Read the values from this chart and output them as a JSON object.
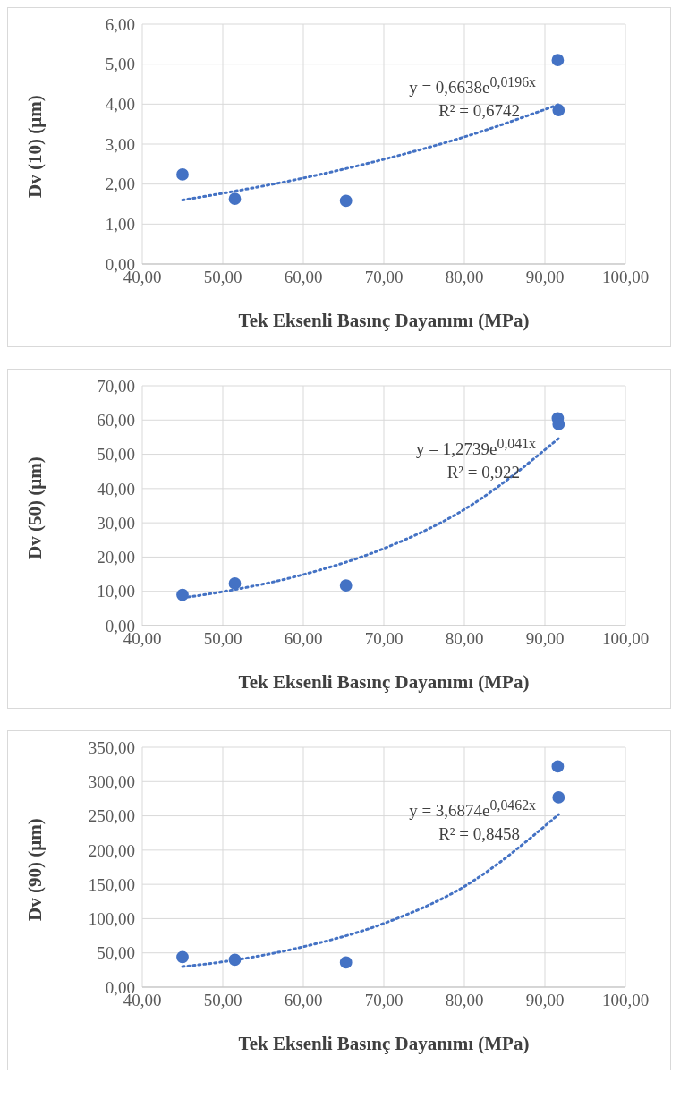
{
  "chart_data": [
    {
      "type": "scatter",
      "xlabel": "Tek Eksenli Basınç Dayanımı (MPa)",
      "ylabel": "Dv (10) (µm)",
      "grid": true,
      "legend": false,
      "xlim": [
        40,
        100
      ],
      "xticks": [
        {
          "value": 40,
          "label": "40,00"
        },
        {
          "value": 50,
          "label": "50,00"
        },
        {
          "value": 60,
          "label": "60,00"
        },
        {
          "value": 70,
          "label": "70,00"
        },
        {
          "value": 80,
          "label": "80,00"
        },
        {
          "value": 90,
          "label": "90,00"
        },
        {
          "value": 100,
          "label": "100,00"
        }
      ],
      "ylim": [
        0,
        6
      ],
      "yticks": [
        {
          "value": 0,
          "label": "0,00"
        },
        {
          "value": 1,
          "label": "1,00"
        },
        {
          "value": 2,
          "label": "2,00"
        },
        {
          "value": 3,
          "label": "3,00"
        },
        {
          "value": 4,
          "label": "4,00"
        },
        {
          "value": 5,
          "label": "5,00"
        },
        {
          "value": 6,
          "label": "6,00"
        }
      ],
      "series": [
        {
          "type": "scatter",
          "color": "#4472c4",
          "marker": "circle",
          "x": [
            45.0,
            51.5,
            65.3,
            91.6,
            91.7
          ],
          "values": [
            2.24,
            1.63,
            1.58,
            5.1,
            3.85
          ]
        },
        {
          "type": "line",
          "color": "#4472c4",
          "marker": "none",
          "line_style": "dotted",
          "x": [
            45,
            50,
            60,
            70,
            80,
            91.7
          ],
          "values": [
            1.6,
            1.77,
            2.15,
            2.62,
            3.18,
            3.99
          ]
        }
      ],
      "annotations": [
        "y = 0,6638e$^{0,0196x}$",
        "R² = 0,6742"
      ]
    },
    {
      "type": "scatter",
      "xlabel": "Tek Eksenli Basınç Dayanımı (MPa)",
      "ylabel": "Dv (50) (µm)",
      "grid": true,
      "legend": false,
      "xlim": [
        40,
        100
      ],
      "xticks": [
        {
          "value": 40,
          "label": "40,00"
        },
        {
          "value": 50,
          "label": "50,00"
        },
        {
          "value": 60,
          "label": "60,00"
        },
        {
          "value": 70,
          "label": "70,00"
        },
        {
          "value": 80,
          "label": "80,00"
        },
        {
          "value": 90,
          "label": "90,00"
        },
        {
          "value": 100,
          "label": "100,00"
        }
      ],
      "ylim": [
        0,
        70
      ],
      "yticks": [
        {
          "value": 0,
          "label": "0,00"
        },
        {
          "value": 10,
          "label": "10,00"
        },
        {
          "value": 20,
          "label": "20,00"
        },
        {
          "value": 30,
          "label": "30,00"
        },
        {
          "value": 40,
          "label": "40,00"
        },
        {
          "value": 50,
          "label": "50,00"
        },
        {
          "value": 60,
          "label": "60,00"
        },
        {
          "value": 70,
          "label": "70,00"
        }
      ],
      "series": [
        {
          "type": "scatter",
          "color": "#4472c4",
          "marker": "circle",
          "x": [
            45.0,
            51.5,
            65.3,
            91.6,
            91.7
          ],
          "values": [
            9.0,
            12.3,
            11.7,
            60.5,
            58.8
          ]
        },
        {
          "type": "line",
          "color": "#4472c4",
          "marker": "none",
          "line_style": "dotted",
          "x": [
            45,
            50,
            60,
            70,
            80,
            91.7
          ],
          "values": [
            8.1,
            9.9,
            14.9,
            22.5,
            33.9,
            54.6
          ]
        }
      ],
      "annotations": [
        "y = 1,2739e$^{0,041x}$",
        "R² = 0,922"
      ]
    },
    {
      "type": "scatter",
      "xlabel": "Tek Eksenli Basınç Dayanımı (MPa)",
      "ylabel": "Dv (90) (µm)",
      "grid": true,
      "legend": false,
      "xlim": [
        40,
        100
      ],
      "xticks": [
        {
          "value": 40,
          "label": "40,00"
        },
        {
          "value": 50,
          "label": "50,00"
        },
        {
          "value": 60,
          "label": "60,00"
        },
        {
          "value": 70,
          "label": "70,00"
        },
        {
          "value": 80,
          "label": "80,00"
        },
        {
          "value": 90,
          "label": "90,00"
        },
        {
          "value": 100,
          "label": "100,00"
        }
      ],
      "ylim": [
        0,
        350
      ],
      "yticks": [
        {
          "value": 0,
          "label": "0,00"
        },
        {
          "value": 50,
          "label": "50,00"
        },
        {
          "value": 100,
          "label": "100,00"
        },
        {
          "value": 150,
          "label": "150,00"
        },
        {
          "value": 200,
          "label": "200,00"
        },
        {
          "value": 250,
          "label": "250,00"
        },
        {
          "value": 300,
          "label": "300,00"
        },
        {
          "value": 350,
          "label": "350,00"
        }
      ],
      "series": [
        {
          "type": "scatter",
          "color": "#4472c4",
          "marker": "circle",
          "x": [
            45.0,
            51.5,
            65.3,
            91.6,
            91.7
          ],
          "values": [
            44,
            40,
            36,
            322,
            277
          ]
        },
        {
          "type": "line",
          "color": "#4472c4",
          "marker": "none",
          "line_style": "dotted",
          "x": [
            45,
            50,
            60,
            70,
            80,
            91.7
          ],
          "values": [
            30,
            37,
            59,
            93,
            147,
            252
          ]
        }
      ],
      "annotations": [
        "y = 3,6874e$^{0,0462x}$",
        "R² = 0,8458"
      ]
    }
  ]
}
